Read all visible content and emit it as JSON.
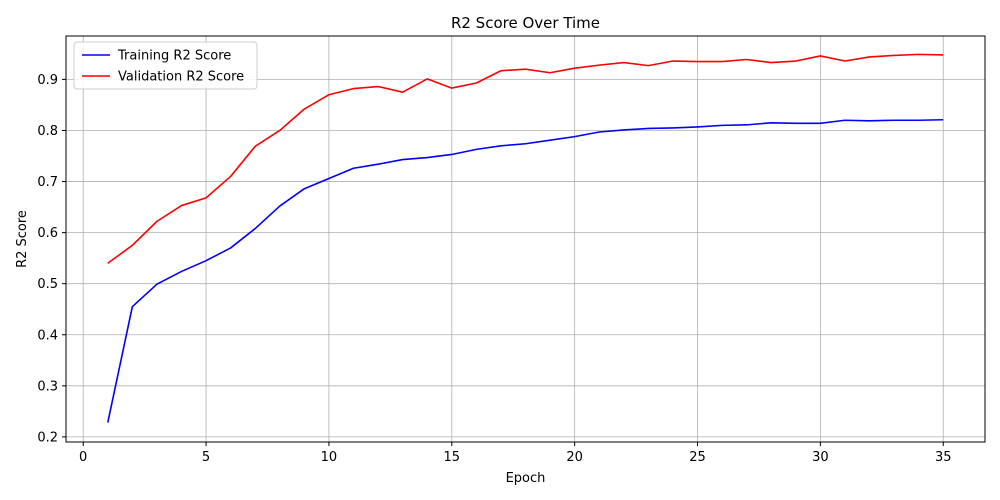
{
  "chart_data": {
    "type": "line",
    "title": "R2 Score Over Time",
    "xlabel": "Epoch",
    "ylabel": "R2 Score",
    "xlim": [
      -0.7,
      36.7
    ],
    "ylim": [
      0.19,
      0.985
    ],
    "xticks": [
      0,
      5,
      10,
      15,
      20,
      25,
      30,
      35
    ],
    "yticks": [
      0.2,
      0.3,
      0.4,
      0.5,
      0.6,
      0.7,
      0.8,
      0.9
    ],
    "grid": true,
    "legend_position": "top-left",
    "x": [
      1,
      2,
      3,
      4,
      5,
      6,
      7,
      8,
      9,
      10,
      11,
      12,
      13,
      14,
      15,
      16,
      17,
      18,
      19,
      20,
      21,
      22,
      23,
      24,
      25,
      26,
      27,
      28,
      29,
      30,
      31,
      32,
      33,
      34,
      35
    ],
    "series": [
      {
        "name": "Training R2 Score",
        "color": "#0000ff",
        "values": [
          0.228,
          0.455,
          0.499,
          0.524,
          0.545,
          0.57,
          0.608,
          0.652,
          0.686,
          0.706,
          0.726,
          0.734,
          0.743,
          0.747,
          0.753,
          0.763,
          0.77,
          0.774,
          0.781,
          0.788,
          0.797,
          0.801,
          0.804,
          0.805,
          0.807,
          0.81,
          0.811,
          0.815,
          0.814,
          0.814,
          0.82,
          0.819,
          0.82,
          0.82,
          0.821
        ]
      },
      {
        "name": "Validation R2 Score",
        "color": "#ff0000",
        "values": [
          0.54,
          0.575,
          0.622,
          0.653,
          0.668,
          0.71,
          0.769,
          0.8,
          0.842,
          0.87,
          0.882,
          0.886,
          0.875,
          0.901,
          0.883,
          0.893,
          0.917,
          0.92,
          0.913,
          0.922,
          0.928,
          0.933,
          0.927,
          0.936,
          0.935,
          0.935,
          0.939,
          0.933,
          0.936,
          0.946,
          0.936,
          0.944,
          0.947,
          0.949,
          0.948
        ]
      }
    ]
  }
}
